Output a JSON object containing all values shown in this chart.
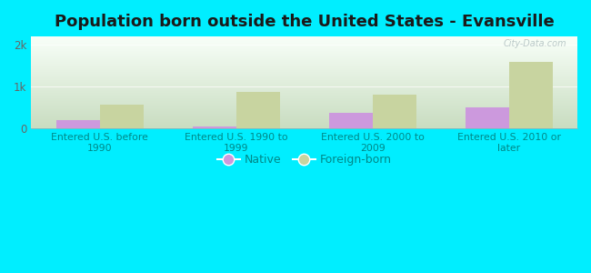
{
  "title": "Population born outside the United States - Evansville",
  "categories": [
    "Entered U.S. before\n1990",
    "Entered U.S. 1990 to\n1999",
    "Entered U.S. 2000 to\n2009",
    "Entered U.S. 2010 or\nlater"
  ],
  "native_values": [
    190,
    55,
    370,
    510
  ],
  "foreign_values": [
    560,
    880,
    800,
    1600
  ],
  "native_color": "#cc99dd",
  "foreign_color": "#c8d4a0",
  "ylim": [
    0,
    2200
  ],
  "yticks": [
    0,
    1000,
    2000
  ],
  "ytick_labels": [
    "0",
    "1k",
    "2k"
  ],
  "outer_bg": "#00eeff",
  "plot_bg_top": "#f5fff5",
  "plot_bg_bottom": "#c8e8c8",
  "bar_width": 0.32,
  "legend_native": "Native",
  "legend_foreign": "Foreign-born",
  "watermark": "City-Data.com",
  "title_fontsize": 13,
  "tick_fontsize": 8.5,
  "label_fontsize": 7.8,
  "label_color": "#008888"
}
